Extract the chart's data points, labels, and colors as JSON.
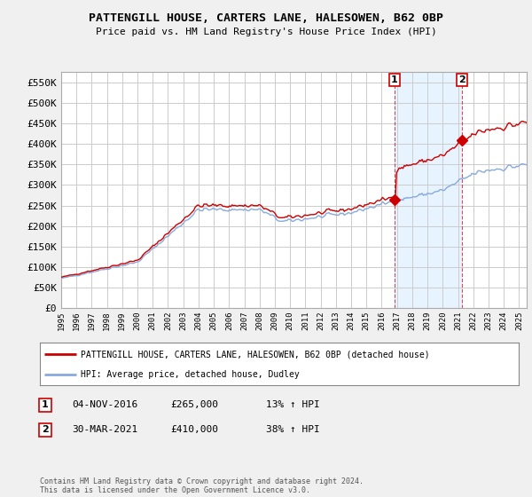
{
  "title": "PATTENGILL HOUSE, CARTERS LANE, HALESOWEN, B62 0BP",
  "subtitle": "Price paid vs. HM Land Registry's House Price Index (HPI)",
  "ylim": [
    0,
    575000
  ],
  "yticks": [
    0,
    50000,
    100000,
    150000,
    200000,
    250000,
    300000,
    350000,
    400000,
    450000,
    500000,
    550000
  ],
  "bg_color": "#f0f0f0",
  "plot_bg_color": "#ffffff",
  "grid_color": "#cccccc",
  "red_color": "#cc0000",
  "blue_color": "#88aadd",
  "shade_color": "#ddeeff",
  "marker1_date_x": 2016.84,
  "marker1_value": 265000,
  "marker2_date_x": 2021.24,
  "marker2_value": 410000,
  "legend_line1": "PATTENGILL HOUSE, CARTERS LANE, HALESOWEN, B62 0BP (detached house)",
  "legend_line2": "HPI: Average price, detached house, Dudley",
  "note1_date": "04-NOV-2016",
  "note1_price": "£265,000",
  "note1_hpi": "13% ↑ HPI",
  "note2_date": "30-MAR-2021",
  "note2_price": "£410,000",
  "note2_hpi": "38% ↑ HPI",
  "footer": "Contains HM Land Registry data © Crown copyright and database right 2024.\nThis data is licensed under the Open Government Licence v3.0.",
  "xmin": 1995.0,
  "xmax": 2025.5
}
